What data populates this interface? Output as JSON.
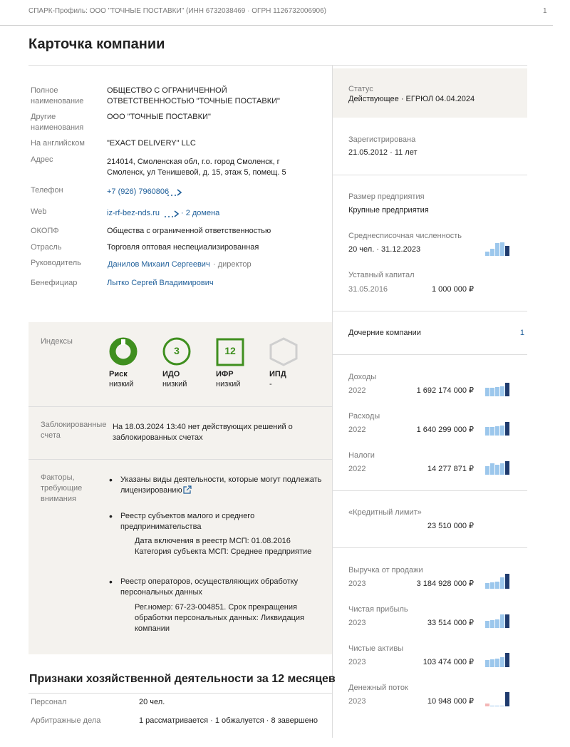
{
  "header": {
    "title": "СПАРК-Профиль: ООО \"ТОЧНЫЕ ПОСТАВКИ\" (ИНН 6732038469 · ОГРН 1126732006906)",
    "page": 1
  },
  "card_title": "Карточка компании",
  "details": [
    {
      "label": "Полное наименование",
      "value": "ОБЩЕСТВО С ОГРАНИЧЕННОЙ ОТВЕТСТВЕННОСТЬЮ \"ТОЧНЫЕ ПОСТАВКИ\""
    },
    {
      "label": "Другие наименования",
      "value": "ООО \"ТОЧНЫЕ ПОСТАВКИ\""
    },
    {
      "label": "На английском",
      "value": "\"EXACT DELIVERY\" LLC"
    },
    {
      "label": "Адрес",
      "value": "214014, Смоленская обл, г.о. город Смоленск, г Смоленск, ул Тенишевой, д. 15, этаж 5, помещ. 5"
    },
    {
      "label": "Телефон",
      "value": "+7 (926) 7960806"
    },
    {
      "label": "Web",
      "value": "iz-rf-bez-nds.ru",
      "extra": "· 2 домена"
    },
    {
      "label": "ОКОПФ",
      "value": "Общества с ограниченной ответственностью"
    },
    {
      "label": "Отрасль",
      "value": "Торговля оптовая неспециализированная"
    },
    {
      "label": "Руководитель",
      "value": "Данилов Михаил Сергеевич",
      "extra": "· директор"
    },
    {
      "label": "Бенефициар",
      "value": "Лытко Сергей Владимирович"
    }
  ],
  "indices": {
    "label": "Индексы",
    "items": [
      {
        "name": "Риск",
        "level": "низкий"
      },
      {
        "name": "ИДО",
        "score": 3,
        "level": "низкий"
      },
      {
        "name": "ИФР",
        "score": 12,
        "level": "низкий"
      },
      {
        "name": "ИПД",
        "level": "-"
      }
    ]
  },
  "blocked_accounts": {
    "label": "Заблокированные счета",
    "text": "На 18.03.2024 13:40 нет действующих решений о заблокированных счетах"
  },
  "factors": {
    "label": "Факторы, требующие внимания",
    "items": [
      {
        "text": "Указаны виды деятельности, которые могут подлежать лицензированию"
      },
      {
        "text": "Реестр субъектов малого и среднего предпринимательства",
        "detail": "Дата включения в реестр МСП: 01.08.2016 Категория субъекта МСП: Среднее предприятие"
      },
      {
        "text": "Реестр операторов, осуществляющих обработку персональных данных",
        "detail": "Рег.номер: 67-23-004851. Срок прекращения обработки персональных данных: Ликвидация компании"
      }
    ]
  },
  "activity": {
    "title": "Признаки хозяйственной деятельности за 12 месяцев",
    "rows": [
      {
        "label": "Персонал",
        "value": "20 чел."
      },
      {
        "label": "Арбитражные дела",
        "value": "1 рассматривается · 1 обжалуется · 8 завершено"
      }
    ]
  },
  "side": {
    "status": {
      "label": "Статус",
      "value": "Действующее · ЕГРЮЛ 04.04.2024"
    },
    "registered": {
      "label": "Зарегистрирована",
      "value": "21.05.2012 · 11 лет"
    },
    "size": {
      "label": "Размер предприятия",
      "value": "Крупные предприятия"
    },
    "headcount": {
      "label": "Среднесписочная численность",
      "value": "20 чел. · 31.12.2023"
    },
    "capital": {
      "label": "Уставный капитал",
      "period": "31.05.2016",
      "amount": "1 000 000 ₽"
    },
    "subsidiaries": {
      "label": "Дочерние компании",
      "value": 1
    },
    "tax_items": [
      {
        "label": "Доходы",
        "period": "2022",
        "amount": "1 692 174 000 ₽"
      },
      {
        "label": "Расходы",
        "period": "2022",
        "amount": "1 640 299 000 ₽"
      },
      {
        "label": "Налоги",
        "period": "2022",
        "amount": "14 277 871 ₽"
      }
    ],
    "credit_limit": {
      "label": "«Кредитный лимит»",
      "amount": "23 510 000 ₽"
    },
    "finance_items": [
      {
        "label": "Выручка от продажи",
        "period": "2023",
        "amount": "3 184 928 000 ₽"
      },
      {
        "label": "Чистая прибыль",
        "period": "2023",
        "amount": "33 514 000 ₽"
      },
      {
        "label": "Чистые активы",
        "period": "2023",
        "amount": "103 474 000 ₽"
      },
      {
        "label": "Денежный поток",
        "period": "2023",
        "amount": "10 948 000 ₽"
      }
    ]
  }
}
